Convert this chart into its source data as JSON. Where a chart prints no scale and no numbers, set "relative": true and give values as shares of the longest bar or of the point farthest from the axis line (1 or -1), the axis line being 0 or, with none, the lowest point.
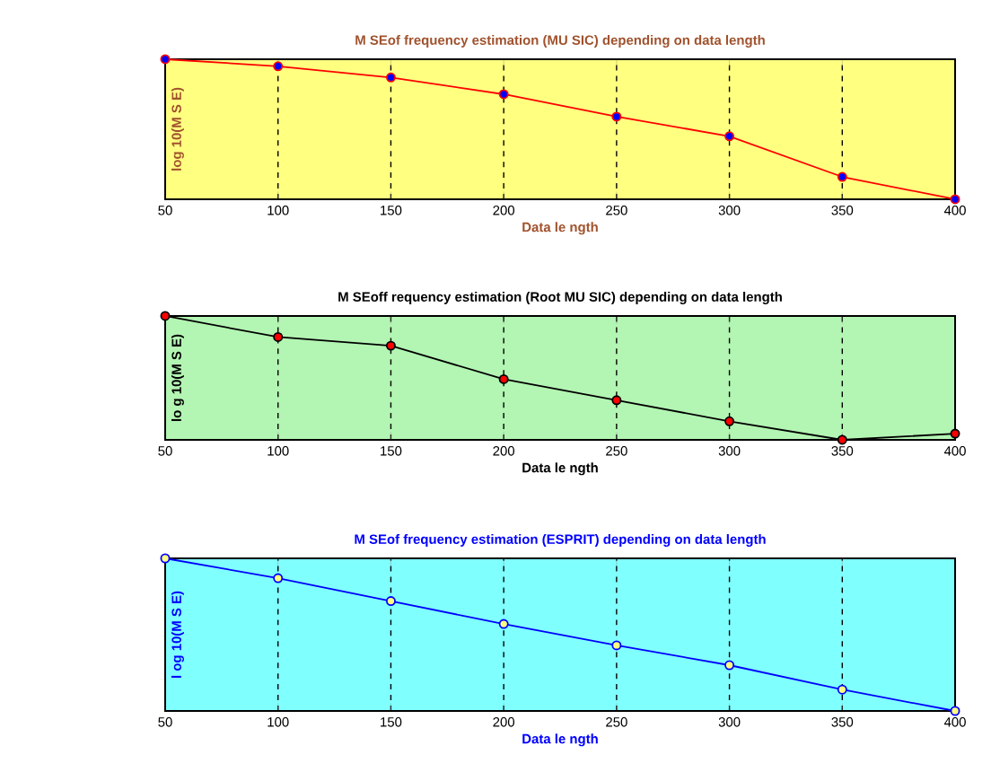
{
  "chart_data": [
    {
      "type": "line",
      "title": "M SEof frequency estimation (MU SIC) depending on data length",
      "xlabel": "Data le ngth",
      "ylabel": "log 10(M S E)",
      "x": [
        50,
        100,
        150,
        200,
        250,
        300,
        350,
        400
      ],
      "xlim": [
        50,
        400
      ],
      "xticks": [
        50,
        100,
        150,
        200,
        250,
        300,
        350,
        400
      ],
      "relative": true,
      "grid": "x",
      "marker": "circle",
      "series": [
        {
          "color": "#ff0000",
          "values": [
            1,
            0.95,
            0.87,
            0.75,
            0.59,
            0.45,
            0.16,
            0
          ]
        }
      ]
    },
    {
      "type": "line",
      "title": "M SEoff requency estimation (Root MU SIC) depending on data length",
      "xlabel": "Data le ngth",
      "ylabel": "lo g 10(M S E)",
      "x": [
        50,
        100,
        150,
        200,
        250,
        300,
        350,
        400
      ],
      "xlim": [
        50,
        400
      ],
      "xticks": [
        50,
        100,
        150,
        200,
        250,
        300,
        350,
        400
      ],
      "relative": true,
      "grid": "x",
      "marker": "circle",
      "series": [
        {
          "color": "#000000",
          "values": [
            1,
            0.83,
            0.76,
            0.49,
            0.32,
            0.15,
            0,
            0.05
          ]
        }
      ]
    },
    {
      "type": "line",
      "title": "M SEof frequency estimation (ESPRIT) depending on data length",
      "xlabel": "Data le ngth",
      "ylabel": "l og 10(M S E)",
      "x": [
        50,
        100,
        150,
        200,
        250,
        300,
        350,
        400
      ],
      "xlim": [
        50,
        400
      ],
      "xticks": [
        50,
        100,
        150,
        200,
        250,
        300,
        350,
        400
      ],
      "relative": true,
      "grid": "x",
      "marker": "circle",
      "series": [
        {
          "color": "#0000ff",
          "values": [
            1,
            0.87,
            0.72,
            0.57,
            0.43,
            0.3,
            0.14,
            0
          ]
        }
      ]
    }
  ]
}
